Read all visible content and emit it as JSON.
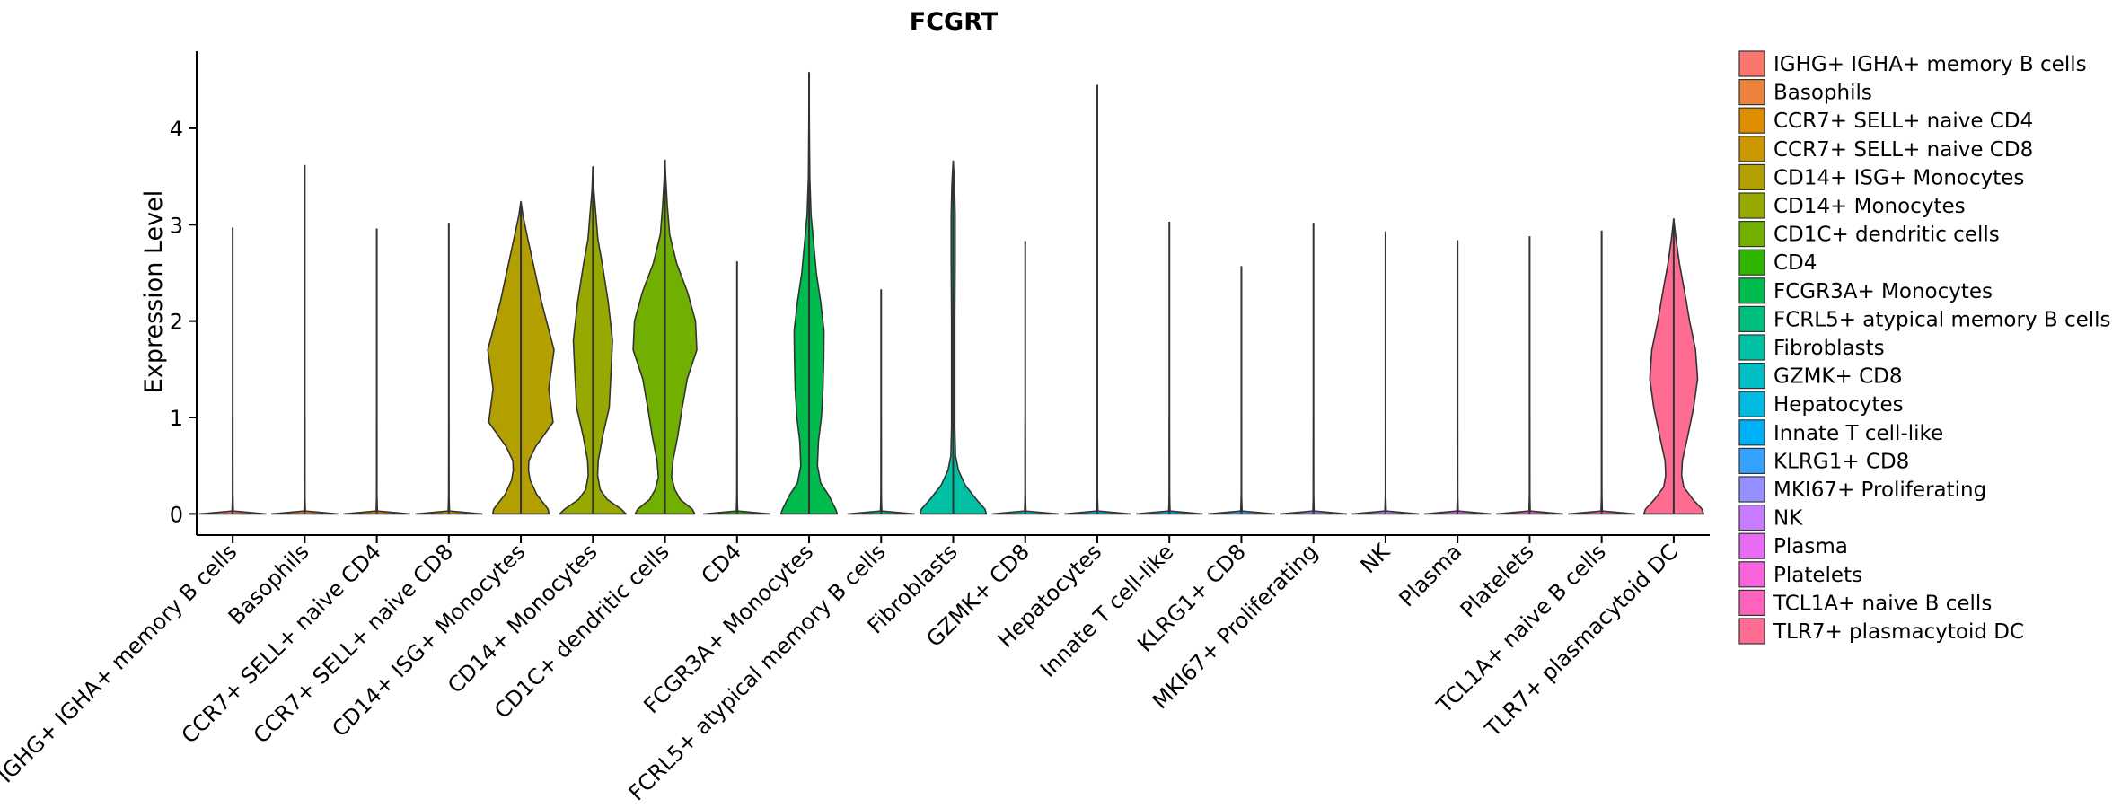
{
  "chart_data": {
    "type": "violin",
    "title": "FCGRT",
    "xlabel": "",
    "ylabel": "Expression Level",
    "ylim": [
      -0.22,
      4.8
    ],
    "yticks": [
      0,
      1,
      2,
      3,
      4
    ],
    "grid": false,
    "legend_position": "right",
    "categories": [
      " IGHG+ IGHA+ memory B cells",
      "Basophils",
      "CCR7+ SELL+ naive CD4",
      "CCR7+ SELL+ naive CD8",
      "CD14+ ISG+ Monocytes",
      "CD14+ Monocytes",
      "CD1C+ dendritic cells",
      "CD4",
      "FCGR3A+ Monocytes",
      "FCRL5+ atypical memory B cells",
      "Fibroblasts",
      "GZMK+ CD8",
      "Hepatocytes",
      "Innate T cell-like",
      "KLRG1+ CD8",
      "MKI67+ Proliferating",
      "NK",
      "Plasma",
      "Platelets",
      "TCL1A+ naive B cells",
      "TLR7+ plasmacytoid DC"
    ],
    "colors": [
      "#F8766D",
      "#EC823C",
      "#DD8D00",
      "#CA9700",
      "#B3A000",
      "#97A900",
      "#71B000",
      "#2FB600",
      "#00BB4E",
      "#00BF7D",
      "#00C1A3",
      "#00BFC4",
      "#00BAE0",
      "#00B0F6",
      "#35A2FF",
      "#9590FF",
      "#C77CFF",
      "#E76BF3",
      "#FA62DB",
      "#FF62BC",
      "#FF6C91"
    ],
    "max_values": [
      2.97,
      3.62,
      2.96,
      3.02,
      3.24,
      3.6,
      3.67,
      2.62,
      4.58,
      2.33,
      3.66,
      2.83,
      4.45,
      3.03,
      2.57,
      3.02,
      2.93,
      2.84,
      2.88,
      2.94,
      3.06
    ],
    "density_profiles": [
      [
        [
          0,
          1
        ],
        [
          0.03,
          0.02
        ],
        [
          0.2,
          0.004
        ],
        [
          1,
          0
        ]
      ],
      [
        [
          0,
          1
        ],
        [
          0.03,
          0.02
        ],
        [
          0.2,
          0.004
        ],
        [
          1,
          0
        ]
      ],
      [
        [
          0,
          1
        ],
        [
          0.03,
          0.02
        ],
        [
          0.2,
          0.004
        ],
        [
          1,
          0
        ]
      ],
      [
        [
          0,
          1
        ],
        [
          0.03,
          0.02
        ],
        [
          0.2,
          0.004
        ],
        [
          1,
          0
        ]
      ],
      [
        [
          0,
          0.85
        ],
        [
          0.05,
          0.82
        ],
        [
          0.2,
          0.48
        ],
        [
          0.35,
          0.28
        ],
        [
          0.45,
          0.23
        ],
        [
          0.55,
          0.24
        ],
        [
          0.7,
          0.45
        ],
        [
          0.95,
          0.97
        ],
        [
          1.3,
          0.84
        ],
        [
          1.7,
          1.0
        ],
        [
          2.2,
          0.62
        ],
        [
          2.6,
          0.37
        ],
        [
          2.9,
          0.18
        ],
        [
          3.1,
          0.06
        ],
        [
          3.24,
          0
        ]
      ],
      [
        [
          0,
          1.0
        ],
        [
          0.05,
          0.85
        ],
        [
          0.15,
          0.43
        ],
        [
          0.25,
          0.22
        ],
        [
          0.4,
          0.14
        ],
        [
          0.55,
          0.16
        ],
        [
          0.8,
          0.29
        ],
        [
          1.1,
          0.49
        ],
        [
          1.5,
          0.55
        ],
        [
          1.8,
          0.59
        ],
        [
          2.2,
          0.46
        ],
        [
          2.6,
          0.28
        ],
        [
          2.85,
          0.15
        ],
        [
          3.1,
          0.09
        ],
        [
          3.35,
          0.03
        ],
        [
          3.6,
          0
        ]
      ],
      [
        [
          0,
          0.9
        ],
        [
          0.05,
          0.82
        ],
        [
          0.15,
          0.46
        ],
        [
          0.25,
          0.3
        ],
        [
          0.38,
          0.2
        ],
        [
          0.55,
          0.24
        ],
        [
          0.8,
          0.38
        ],
        [
          1.1,
          0.52
        ],
        [
          1.4,
          0.67
        ],
        [
          1.7,
          0.96
        ],
        [
          2.0,
          0.92
        ],
        [
          2.3,
          0.68
        ],
        [
          2.6,
          0.35
        ],
        [
          2.9,
          0.14
        ],
        [
          3.2,
          0.07
        ],
        [
          3.5,
          0.02
        ],
        [
          3.67,
          0
        ]
      ],
      [
        [
          0,
          1
        ],
        [
          0.03,
          0.02
        ],
        [
          0.2,
          0.004
        ],
        [
          1,
          0
        ]
      ],
      [
        [
          0,
          0.85
        ],
        [
          0.05,
          0.8
        ],
        [
          0.2,
          0.58
        ],
        [
          0.32,
          0.35
        ],
        [
          0.5,
          0.25
        ],
        [
          0.75,
          0.28
        ],
        [
          1.0,
          0.37
        ],
        [
          1.3,
          0.42
        ],
        [
          1.6,
          0.44
        ],
        [
          1.9,
          0.45
        ],
        [
          2.2,
          0.35
        ],
        [
          2.5,
          0.22
        ],
        [
          2.8,
          0.14
        ],
        [
          3.1,
          0.06
        ],
        [
          3.5,
          0.02
        ],
        [
          4.0,
          0.008
        ],
        [
          4.58,
          0
        ]
      ],
      [
        [
          0,
          1
        ],
        [
          0.03,
          0.02
        ],
        [
          0.2,
          0.004
        ],
        [
          1,
          0
        ]
      ],
      [
        [
          0,
          1.0
        ],
        [
          0.05,
          0.96
        ],
        [
          0.15,
          0.7
        ],
        [
          0.3,
          0.36
        ],
        [
          0.45,
          0.16
        ],
        [
          0.6,
          0.07
        ],
        [
          0.9,
          0.05
        ],
        [
          1.5,
          0.05
        ],
        [
          2.0,
          0.05
        ],
        [
          2.6,
          0.06
        ],
        [
          3.1,
          0.06
        ],
        [
          3.4,
          0.04
        ],
        [
          3.55,
          0.02
        ],
        [
          3.66,
          0
        ]
      ],
      [
        [
          0,
          1
        ],
        [
          0.03,
          0.02
        ],
        [
          0.2,
          0.004
        ],
        [
          1,
          0
        ]
      ],
      [
        [
          0,
          1
        ],
        [
          0.03,
          0.02
        ],
        [
          0.2,
          0.004
        ],
        [
          1,
          0
        ]
      ],
      [
        [
          0,
          1
        ],
        [
          0.03,
          0.02
        ],
        [
          0.2,
          0.004
        ],
        [
          1,
          0
        ]
      ],
      [
        [
          0,
          1
        ],
        [
          0.03,
          0.02
        ],
        [
          0.2,
          0.004
        ],
        [
          1,
          0
        ]
      ],
      [
        [
          0,
          1
        ],
        [
          0.03,
          0.02
        ],
        [
          0.2,
          0.004
        ],
        [
          1,
          0
        ]
      ],
      [
        [
          0,
          1
        ],
        [
          0.03,
          0.02
        ],
        [
          0.2,
          0.004
        ],
        [
          1,
          0
        ]
      ],
      [
        [
          0,
          1
        ],
        [
          0.03,
          0.02
        ],
        [
          0.2,
          0.004
        ],
        [
          1,
          0
        ]
      ],
      [
        [
          0,
          1
        ],
        [
          0.03,
          0.02
        ],
        [
          0.2,
          0.004
        ],
        [
          1,
          0
        ]
      ],
      [
        [
          0,
          1
        ],
        [
          0.03,
          0.02
        ],
        [
          0.2,
          0.004
        ],
        [
          1,
          0
        ]
      ],
      [
        [
          0,
          0.9
        ],
        [
          0.05,
          0.85
        ],
        [
          0.15,
          0.58
        ],
        [
          0.28,
          0.3
        ],
        [
          0.4,
          0.24
        ],
        [
          0.55,
          0.26
        ],
        [
          0.8,
          0.42
        ],
        [
          1.1,
          0.6
        ],
        [
          1.4,
          0.72
        ],
        [
          1.7,
          0.66
        ],
        [
          2.0,
          0.48
        ],
        [
          2.3,
          0.33
        ],
        [
          2.6,
          0.17
        ],
        [
          2.85,
          0.07
        ],
        [
          3.06,
          0
        ]
      ]
    ]
  }
}
